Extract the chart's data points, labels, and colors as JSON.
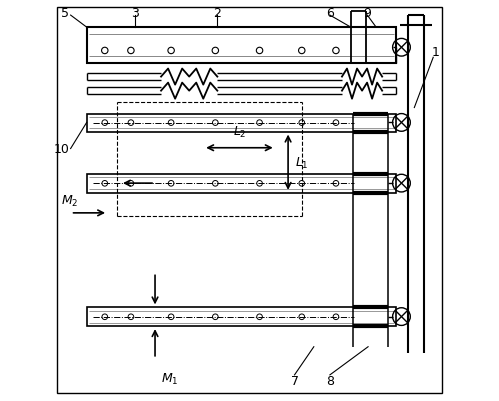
{
  "fig_width": 4.99,
  "fig_height": 4.02,
  "dpi": 100,
  "bg_color": "#ffffff",
  "line_color": "#000000",
  "gray_color": "#888888"
}
